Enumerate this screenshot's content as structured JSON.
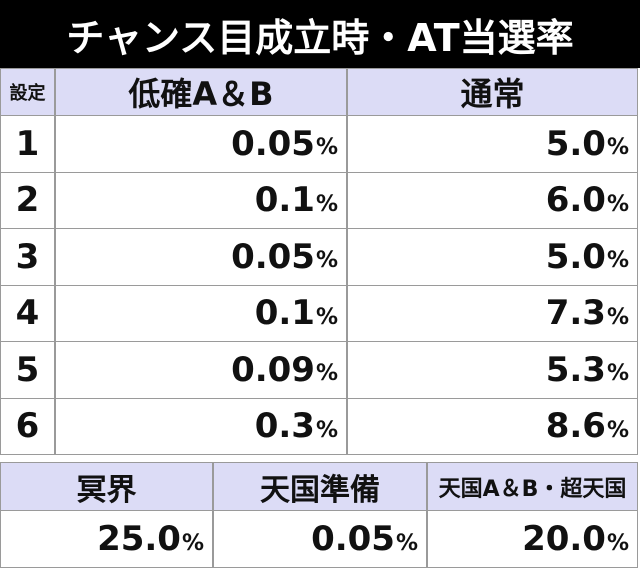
{
  "header": {
    "title": "チャンス目成立時・AT当選率"
  },
  "table": {
    "columns": [
      "設定",
      "低確A＆B",
      "通常"
    ],
    "rows": [
      [
        "1",
        {
          "value": "0.05",
          "unit": "%"
        },
        {
          "value": "5.0",
          "unit": "%"
        }
      ],
      [
        "2",
        {
          "value": "0.1",
          "unit": "%"
        },
        {
          "value": "6.0",
          "unit": "%"
        }
      ],
      [
        "3",
        {
          "value": "0.05",
          "unit": "%"
        },
        {
          "value": "5.0",
          "unit": "%"
        }
      ],
      [
        "4",
        {
          "value": "0.1",
          "unit": "%"
        },
        {
          "value": "7.3",
          "unit": "%"
        }
      ],
      [
        "5",
        {
          "value": "0.09",
          "unit": "%"
        },
        {
          "value": "5.3",
          "unit": "%"
        }
      ],
      [
        "6",
        {
          "value": "0.3",
          "unit": "%"
        },
        {
          "value": "8.6",
          "unit": "%"
        }
      ]
    ]
  },
  "table2": {
    "columns": [
      "冥界",
      "天国準備",
      "天国A＆B・超天国"
    ],
    "rows": [
      [
        {
          "value": "25.0",
          "unit": "%"
        },
        {
          "value": "0.05",
          "unit": "%"
        },
        {
          "value": "20.0",
          "unit": "%"
        }
      ]
    ]
  }
}
